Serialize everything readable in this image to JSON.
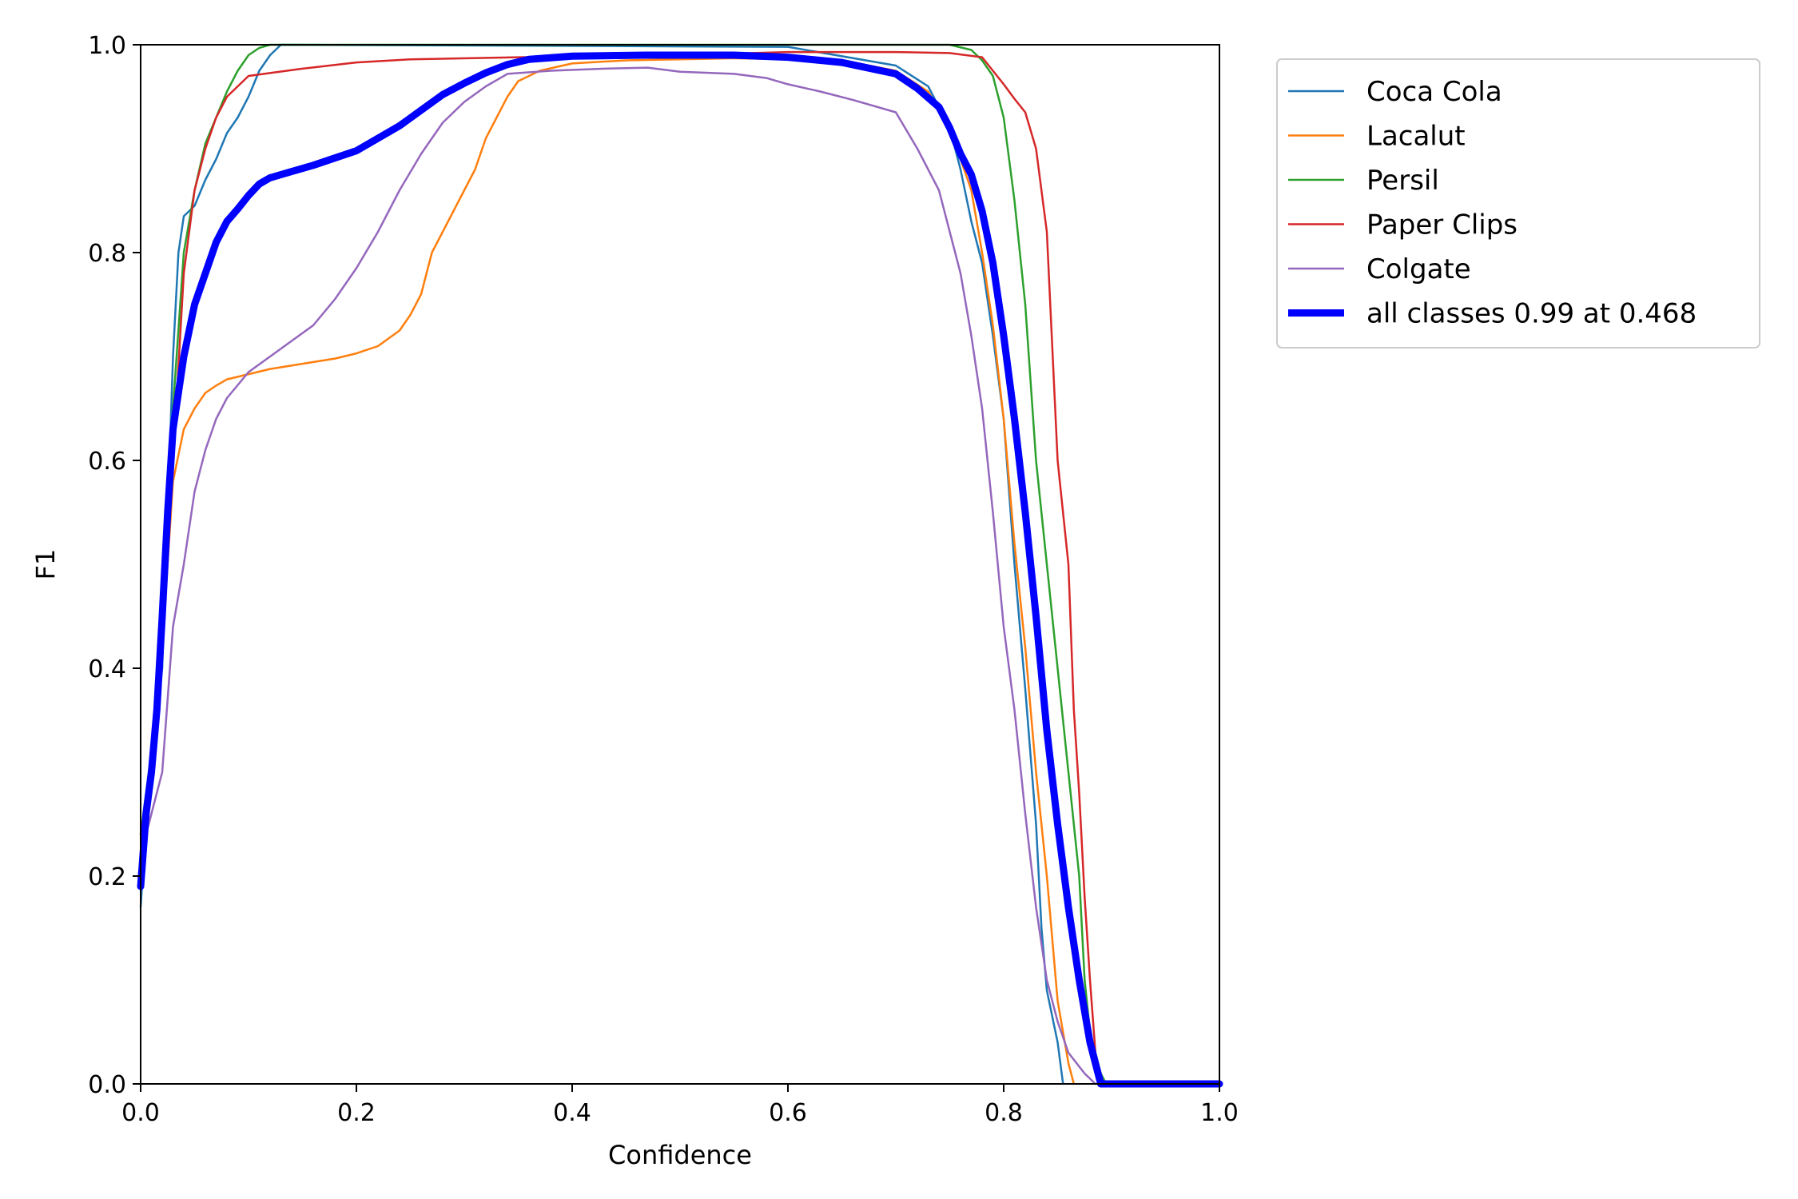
{
  "chart_data": {
    "type": "line",
    "xlabel": "Confidence",
    "ylabel": "F1",
    "xlim": [
      0.0,
      1.0
    ],
    "ylim": [
      0.0,
      1.0
    ],
    "x_ticks": [
      "0.0",
      "0.2",
      "0.4",
      "0.6",
      "0.8",
      "1.0"
    ],
    "y_ticks": [
      "0.0",
      "0.2",
      "0.4",
      "0.6",
      "0.8",
      "1.0"
    ],
    "grid": false,
    "legend_position": "outside-top-right",
    "series": [
      {
        "name": "Coca Cola",
        "color": "#1f77b4",
        "width": "thin",
        "points": [
          [
            0.0,
            0.17
          ],
          [
            0.005,
            0.25
          ],
          [
            0.01,
            0.3
          ],
          [
            0.02,
            0.4
          ],
          [
            0.03,
            0.7
          ],
          [
            0.035,
            0.8
          ],
          [
            0.04,
            0.835
          ],
          [
            0.05,
            0.845
          ],
          [
            0.06,
            0.87
          ],
          [
            0.07,
            0.89
          ],
          [
            0.08,
            0.915
          ],
          [
            0.09,
            0.93
          ],
          [
            0.1,
            0.95
          ],
          [
            0.11,
            0.975
          ],
          [
            0.12,
            0.99
          ],
          [
            0.13,
            1.0
          ],
          [
            0.6,
            0.998
          ],
          [
            0.7,
            0.98
          ],
          [
            0.73,
            0.96
          ],
          [
            0.75,
            0.92
          ],
          [
            0.76,
            0.88
          ],
          [
            0.77,
            0.83
          ],
          [
            0.78,
            0.79
          ],
          [
            0.79,
            0.72
          ],
          [
            0.8,
            0.64
          ],
          [
            0.81,
            0.5
          ],
          [
            0.82,
            0.38
          ],
          [
            0.83,
            0.25
          ],
          [
            0.835,
            0.15
          ],
          [
            0.84,
            0.09
          ],
          [
            0.85,
            0.04
          ],
          [
            0.855,
            0.0
          ]
        ]
      },
      {
        "name": "Lacalut",
        "color": "#ff7f0e",
        "width": "thin",
        "points": [
          [
            0.0,
            0.2
          ],
          [
            0.01,
            0.3
          ],
          [
            0.02,
            0.42
          ],
          [
            0.03,
            0.58
          ],
          [
            0.04,
            0.63
          ],
          [
            0.05,
            0.65
          ],
          [
            0.06,
            0.665
          ],
          [
            0.07,
            0.672
          ],
          [
            0.08,
            0.678
          ],
          [
            0.1,
            0.683
          ],
          [
            0.12,
            0.688
          ],
          [
            0.15,
            0.693
          ],
          [
            0.18,
            0.698
          ],
          [
            0.2,
            0.703
          ],
          [
            0.22,
            0.71
          ],
          [
            0.24,
            0.725
          ],
          [
            0.25,
            0.74
          ],
          [
            0.26,
            0.76
          ],
          [
            0.27,
            0.8
          ],
          [
            0.28,
            0.82
          ],
          [
            0.29,
            0.84
          ],
          [
            0.3,
            0.86
          ],
          [
            0.31,
            0.88
          ],
          [
            0.32,
            0.91
          ],
          [
            0.33,
            0.93
          ],
          [
            0.34,
            0.95
          ],
          [
            0.35,
            0.965
          ],
          [
            0.37,
            0.975
          ],
          [
            0.4,
            0.982
          ],
          [
            0.45,
            0.985
          ],
          [
            0.55,
            0.987
          ],
          [
            0.65,
            0.985
          ],
          [
            0.7,
            0.975
          ],
          [
            0.73,
            0.955
          ],
          [
            0.75,
            0.92
          ],
          [
            0.77,
            0.86
          ],
          [
            0.78,
            0.8
          ],
          [
            0.79,
            0.73
          ],
          [
            0.8,
            0.64
          ],
          [
            0.81,
            0.52
          ],
          [
            0.82,
            0.42
          ],
          [
            0.83,
            0.3
          ],
          [
            0.84,
            0.2
          ],
          [
            0.85,
            0.08
          ],
          [
            0.86,
            0.02
          ],
          [
            0.865,
            0.0
          ]
        ]
      },
      {
        "name": "Persil",
        "color": "#2ca02c",
        "width": "thin",
        "points": [
          [
            0.0,
            0.24
          ],
          [
            0.01,
            0.32
          ],
          [
            0.02,
            0.45
          ],
          [
            0.03,
            0.65
          ],
          [
            0.04,
            0.8
          ],
          [
            0.05,
            0.86
          ],
          [
            0.06,
            0.905
          ],
          [
            0.07,
            0.93
          ],
          [
            0.08,
            0.955
          ],
          [
            0.09,
            0.975
          ],
          [
            0.1,
            0.99
          ],
          [
            0.11,
            0.997
          ],
          [
            0.12,
            1.0
          ],
          [
            0.75,
            1.0
          ],
          [
            0.77,
            0.995
          ],
          [
            0.78,
            0.985
          ],
          [
            0.79,
            0.97
          ],
          [
            0.8,
            0.93
          ],
          [
            0.81,
            0.85
          ],
          [
            0.82,
            0.75
          ],
          [
            0.83,
            0.6
          ],
          [
            0.84,
            0.5
          ],
          [
            0.85,
            0.4
          ],
          [
            0.86,
            0.3
          ],
          [
            0.87,
            0.2
          ],
          [
            0.875,
            0.1
          ],
          [
            0.88,
            0.05
          ],
          [
            0.89,
            0.01
          ],
          [
            0.895,
            0.0
          ]
        ]
      },
      {
        "name": "Paper Clips",
        "color": "#d62728",
        "width": "thin",
        "points": [
          [
            0.0,
            0.24
          ],
          [
            0.01,
            0.3
          ],
          [
            0.02,
            0.43
          ],
          [
            0.03,
            0.6
          ],
          [
            0.04,
            0.78
          ],
          [
            0.05,
            0.86
          ],
          [
            0.06,
            0.9
          ],
          [
            0.07,
            0.93
          ],
          [
            0.08,
            0.95
          ],
          [
            0.1,
            0.97
          ],
          [
            0.15,
            0.977
          ],
          [
            0.2,
            0.983
          ],
          [
            0.25,
            0.986
          ],
          [
            0.35,
            0.988
          ],
          [
            0.5,
            0.99
          ],
          [
            0.6,
            0.993
          ],
          [
            0.7,
            0.993
          ],
          [
            0.75,
            0.992
          ],
          [
            0.78,
            0.988
          ],
          [
            0.79,
            0.975
          ],
          [
            0.8,
            0.962
          ],
          [
            0.81,
            0.948
          ],
          [
            0.82,
            0.935
          ],
          [
            0.83,
            0.9
          ],
          [
            0.84,
            0.82
          ],
          [
            0.85,
            0.6
          ],
          [
            0.86,
            0.5
          ],
          [
            0.865,
            0.36
          ],
          [
            0.87,
            0.28
          ],
          [
            0.875,
            0.18
          ],
          [
            0.88,
            0.1
          ],
          [
            0.885,
            0.03
          ],
          [
            0.89,
            0.0
          ]
        ]
      },
      {
        "name": "Colgate",
        "color": "#9467bd",
        "width": "thin",
        "points": [
          [
            0.0,
            0.22
          ],
          [
            0.01,
            0.26
          ],
          [
            0.02,
            0.3
          ],
          [
            0.03,
            0.44
          ],
          [
            0.04,
            0.5
          ],
          [
            0.05,
            0.57
          ],
          [
            0.06,
            0.61
          ],
          [
            0.07,
            0.64
          ],
          [
            0.08,
            0.66
          ],
          [
            0.1,
            0.685
          ],
          [
            0.12,
            0.7
          ],
          [
            0.14,
            0.715
          ],
          [
            0.16,
            0.73
          ],
          [
            0.18,
            0.755
          ],
          [
            0.2,
            0.785
          ],
          [
            0.22,
            0.82
          ],
          [
            0.24,
            0.86
          ],
          [
            0.26,
            0.895
          ],
          [
            0.28,
            0.925
          ],
          [
            0.3,
            0.945
          ],
          [
            0.32,
            0.96
          ],
          [
            0.34,
            0.972
          ],
          [
            0.38,
            0.975
          ],
          [
            0.43,
            0.977
          ],
          [
            0.47,
            0.978
          ],
          [
            0.5,
            0.974
          ],
          [
            0.55,
            0.972
          ],
          [
            0.58,
            0.968
          ],
          [
            0.6,
            0.962
          ],
          [
            0.63,
            0.955
          ],
          [
            0.66,
            0.947
          ],
          [
            0.7,
            0.935
          ],
          [
            0.72,
            0.9
          ],
          [
            0.74,
            0.86
          ],
          [
            0.76,
            0.78
          ],
          [
            0.77,
            0.72
          ],
          [
            0.78,
            0.65
          ],
          [
            0.79,
            0.55
          ],
          [
            0.8,
            0.44
          ],
          [
            0.81,
            0.36
          ],
          [
            0.82,
            0.26
          ],
          [
            0.83,
            0.17
          ],
          [
            0.84,
            0.1
          ],
          [
            0.85,
            0.06
          ],
          [
            0.86,
            0.03
          ],
          [
            0.875,
            0.01
          ],
          [
            0.885,
            0.0
          ]
        ]
      },
      {
        "name": "all classes 0.99 at 0.468",
        "color": "#0000ff",
        "width": "thick",
        "points": [
          [
            0.0,
            0.19
          ],
          [
            0.005,
            0.26
          ],
          [
            0.01,
            0.3
          ],
          [
            0.015,
            0.36
          ],
          [
            0.02,
            0.45
          ],
          [
            0.025,
            0.55
          ],
          [
            0.03,
            0.63
          ],
          [
            0.04,
            0.7
          ],
          [
            0.05,
            0.75
          ],
          [
            0.06,
            0.78
          ],
          [
            0.07,
            0.81
          ],
          [
            0.08,
            0.83
          ],
          [
            0.09,
            0.842
          ],
          [
            0.1,
            0.855
          ],
          [
            0.11,
            0.866
          ],
          [
            0.12,
            0.872
          ],
          [
            0.14,
            0.878
          ],
          [
            0.16,
            0.884
          ],
          [
            0.18,
            0.891
          ],
          [
            0.2,
            0.898
          ],
          [
            0.22,
            0.91
          ],
          [
            0.24,
            0.922
          ],
          [
            0.26,
            0.937
          ],
          [
            0.28,
            0.952
          ],
          [
            0.3,
            0.963
          ],
          [
            0.32,
            0.973
          ],
          [
            0.34,
            0.981
          ],
          [
            0.36,
            0.986
          ],
          [
            0.4,
            0.989
          ],
          [
            0.468,
            0.99
          ],
          [
            0.55,
            0.99
          ],
          [
            0.6,
            0.988
          ],
          [
            0.65,
            0.983
          ],
          [
            0.7,
            0.972
          ],
          [
            0.72,
            0.958
          ],
          [
            0.74,
            0.94
          ],
          [
            0.75,
            0.92
          ],
          [
            0.76,
            0.895
          ],
          [
            0.77,
            0.875
          ],
          [
            0.78,
            0.84
          ],
          [
            0.79,
            0.79
          ],
          [
            0.8,
            0.72
          ],
          [
            0.81,
            0.64
          ],
          [
            0.82,
            0.55
          ],
          [
            0.83,
            0.45
          ],
          [
            0.84,
            0.34
          ],
          [
            0.85,
            0.25
          ],
          [
            0.86,
            0.17
          ],
          [
            0.87,
            0.1
          ],
          [
            0.88,
            0.04
          ],
          [
            0.89,
            0.0
          ],
          [
            1.0,
            0.0
          ]
        ]
      }
    ]
  }
}
